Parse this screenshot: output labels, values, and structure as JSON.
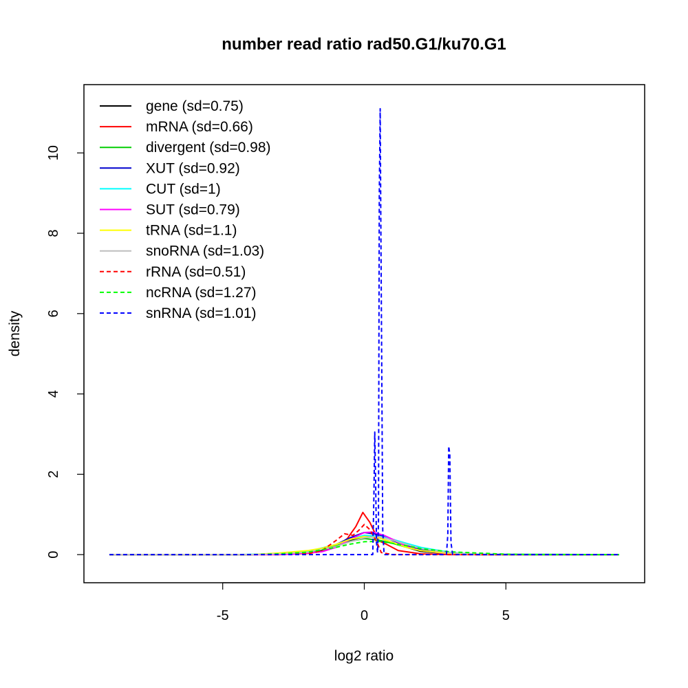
{
  "chart_data": {
    "type": "line",
    "title": "number read ratio rad50.G1/ku70.G1",
    "xlabel": "log2 ratio",
    "ylabel": "density",
    "xlim": [
      -9.9,
      9.9
    ],
    "ylim": [
      -0.7,
      11.7
    ],
    "x_ticks": [
      -5,
      0,
      5
    ],
    "x_tick_labels": [
      "-5",
      "0",
      "5"
    ],
    "y_ticks": [
      0,
      2,
      4,
      6,
      8,
      10
    ],
    "y_tick_labels": [
      "0",
      "2",
      "4",
      "6",
      "8",
      "10"
    ],
    "grid": false,
    "legend_position": "top-left",
    "series": [
      {
        "name": "gene (sd=0.75)",
        "color": "#000000",
        "dashed": false,
        "points": [
          [
            -9,
            0
          ],
          [
            -4,
            0
          ],
          [
            -2.5,
            0.02
          ],
          [
            -1.5,
            0.1
          ],
          [
            -1,
            0.2
          ],
          [
            -0.5,
            0.34
          ],
          [
            0,
            0.46
          ],
          [
            0.5,
            0.42
          ],
          [
            1,
            0.3
          ],
          [
            1.5,
            0.18
          ],
          [
            2,
            0.08
          ],
          [
            3,
            0.02
          ],
          [
            4,
            0
          ],
          [
            9,
            0
          ]
        ]
      },
      {
        "name": "mRNA (sd=0.66)",
        "color": "#ff0000",
        "dashed": false,
        "points": [
          [
            -9,
            0
          ],
          [
            -3,
            0
          ],
          [
            -2,
            0.03
          ],
          [
            -1.5,
            0.08
          ],
          [
            -1,
            0.2
          ],
          [
            -0.6,
            0.4
          ],
          [
            -0.3,
            0.7
          ],
          [
            -0.05,
            1.05
          ],
          [
            0.2,
            0.8
          ],
          [
            0.5,
            0.35
          ],
          [
            0.8,
            0.25
          ],
          [
            1.2,
            0.1
          ],
          [
            2,
            0.02
          ],
          [
            3,
            0
          ],
          [
            9,
            0
          ]
        ]
      },
      {
        "name": "divergent (sd=0.98)",
        "color": "#00cd00",
        "dashed": false,
        "points": [
          [
            -9,
            0
          ],
          [
            -4,
            0
          ],
          [
            -3,
            0.02
          ],
          [
            -2,
            0.08
          ],
          [
            -1,
            0.22
          ],
          [
            -0.5,
            0.33
          ],
          [
            0,
            0.4
          ],
          [
            0.5,
            0.36
          ],
          [
            1,
            0.28
          ],
          [
            1.5,
            0.18
          ],
          [
            2,
            0.1
          ],
          [
            3,
            0.03
          ],
          [
            4,
            0.01
          ],
          [
            9,
            0
          ]
        ]
      },
      {
        "name": "XUT (sd=0.92)",
        "color": "#0000cd",
        "dashed": false,
        "points": [
          [
            -9,
            0
          ],
          [
            -4,
            0
          ],
          [
            -3,
            0.02
          ],
          [
            -2,
            0.07
          ],
          [
            -1,
            0.25
          ],
          [
            -0.5,
            0.42
          ],
          [
            0,
            0.55
          ],
          [
            0.5,
            0.5
          ],
          [
            1,
            0.35
          ],
          [
            1.5,
            0.22
          ],
          [
            2,
            0.12
          ],
          [
            3,
            0.03
          ],
          [
            4,
            0
          ],
          [
            9,
            0
          ]
        ]
      },
      {
        "name": "CUT (sd=1)",
        "color": "#00ffff",
        "dashed": false,
        "points": [
          [
            -9,
            0
          ],
          [
            -4.5,
            0
          ],
          [
            -3,
            0.02
          ],
          [
            -2,
            0.08
          ],
          [
            -1,
            0.25
          ],
          [
            -0.5,
            0.38
          ],
          [
            0,
            0.48
          ],
          [
            0.5,
            0.46
          ],
          [
            1,
            0.38
          ],
          [
            1.5,
            0.28
          ],
          [
            2,
            0.18
          ],
          [
            3,
            0.06
          ],
          [
            4,
            0.01
          ],
          [
            9,
            0
          ]
        ]
      },
      {
        "name": "SUT (sd=0.79)",
        "color": "#ff00ff",
        "dashed": false,
        "points": [
          [
            -9,
            0
          ],
          [
            -3.5,
            0
          ],
          [
            -2.5,
            0.01
          ],
          [
            -1.5,
            0.07
          ],
          [
            -1,
            0.18
          ],
          [
            -0.5,
            0.38
          ],
          [
            0,
            0.55
          ],
          [
            0.3,
            0.56
          ],
          [
            0.7,
            0.48
          ],
          [
            1,
            0.38
          ],
          [
            1.5,
            0.2
          ],
          [
            2,
            0.1
          ],
          [
            3,
            0.02
          ],
          [
            4,
            0
          ],
          [
            9,
            0
          ]
        ]
      },
      {
        "name": "tRNA (sd=1.1)",
        "color": "#ffff00",
        "dashed": false,
        "points": [
          [
            -9,
            0
          ],
          [
            -4,
            0
          ],
          [
            -3,
            0.04
          ],
          [
            -2,
            0.1
          ],
          [
            -1.5,
            0.16
          ],
          [
            -1,
            0.25
          ],
          [
            -0.5,
            0.38
          ],
          [
            0,
            0.45
          ],
          [
            0.5,
            0.42
          ],
          [
            1,
            0.3
          ],
          [
            1.5,
            0.18
          ],
          [
            2,
            0.1
          ],
          [
            3,
            0.03
          ],
          [
            4,
            0
          ],
          [
            9,
            0
          ]
        ]
      },
      {
        "name": "snoRNA (sd=1.03)",
        "color": "#bebebe",
        "dashed": false,
        "points": [
          [
            -9,
            0
          ],
          [
            -4,
            0
          ],
          [
            -3,
            0.02
          ],
          [
            -2,
            0.06
          ],
          [
            -1,
            0.2
          ],
          [
            -0.5,
            0.32
          ],
          [
            0,
            0.42
          ],
          [
            0.5,
            0.45
          ],
          [
            1,
            0.36
          ],
          [
            1.5,
            0.25
          ],
          [
            2,
            0.15
          ],
          [
            3,
            0.05
          ],
          [
            4,
            0.01
          ],
          [
            9,
            0
          ]
        ]
      },
      {
        "name": "rRNA (sd=0.51)",
        "color": "#ff0000",
        "dashed": true,
        "points": [
          [
            -9,
            0
          ],
          [
            -3,
            0
          ],
          [
            -2,
            0.02
          ],
          [
            -1.5,
            0.1
          ],
          [
            -1,
            0.35
          ],
          [
            -0.7,
            0.52
          ],
          [
            -0.4,
            0.48
          ],
          [
            -0.2,
            0.6
          ],
          [
            0,
            0.75
          ],
          [
            0.2,
            0.62
          ],
          [
            0.45,
            0.3
          ],
          [
            0.6,
            0.05
          ],
          [
            1,
            0
          ],
          [
            9,
            0
          ]
        ]
      },
      {
        "name": "ncRNA (sd=1.27)",
        "color": "#00ff00",
        "dashed": true,
        "points": [
          [
            -9,
            0
          ],
          [
            -4,
            0
          ],
          [
            -3,
            0.02
          ],
          [
            -2,
            0.06
          ],
          [
            -1,
            0.18
          ],
          [
            -0.5,
            0.26
          ],
          [
            0,
            0.32
          ],
          [
            0.5,
            0.33
          ],
          [
            1,
            0.28
          ],
          [
            1.5,
            0.22
          ],
          [
            2,
            0.15
          ],
          [
            3,
            0.07
          ],
          [
            4,
            0.04
          ],
          [
            5,
            0.01
          ],
          [
            6,
            0
          ],
          [
            9,
            0
          ]
        ]
      },
      {
        "name": "snRNA (sd=1.01)",
        "color": "#0000ff",
        "dashed": true,
        "points": [
          [
            -9,
            0
          ],
          [
            0.3,
            0
          ],
          [
            0.34,
            1.5
          ],
          [
            0.37,
            3.05
          ],
          [
            0.4,
            1.8
          ],
          [
            0.43,
            0.3
          ],
          [
            0.47,
            0.05
          ],
          [
            0.5,
            0.8
          ],
          [
            0.53,
            9
          ],
          [
            0.56,
            11.1
          ],
          [
            0.59,
            7.5
          ],
          [
            0.62,
            4.3
          ],
          [
            0.65,
            0.6
          ],
          [
            0.7,
            0
          ],
          [
            2.9,
            0
          ],
          [
            2.95,
            0.5
          ],
          [
            2.98,
            2.7
          ],
          [
            3.02,
            2.5
          ],
          [
            3.06,
            0.3
          ],
          [
            3.12,
            0
          ],
          [
            9,
            0
          ]
        ]
      }
    ]
  }
}
